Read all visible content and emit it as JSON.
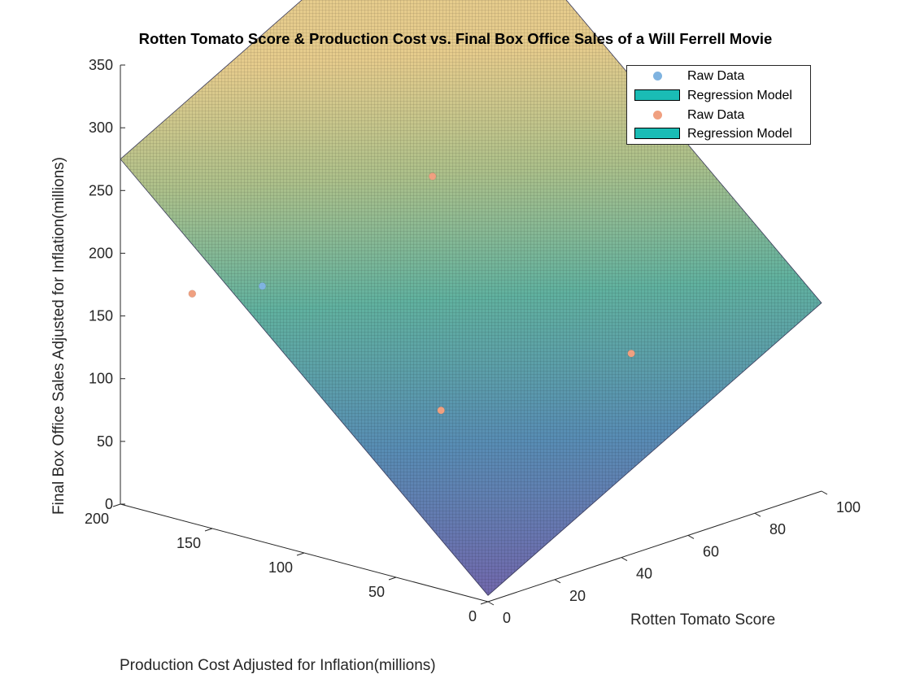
{
  "chart_data": {
    "type": "surface+scatter3d",
    "title": "Rotten Tomato Score & Production Cost vs. Final Box Office Sales of a Will Ferrell Movie",
    "xlabel": "Rotten Tomato Score",
    "ylabel": "Production Cost Adjusted for Inflation(millions)",
    "zlabel": "Final Box Office Sales Adjusted for Inflation(millions)",
    "xlim": [
      0,
      100
    ],
    "ylim": [
      0,
      200
    ],
    "zlim": [
      0,
      350
    ],
    "xticks": [
      0,
      20,
      40,
      60,
      80,
      100
    ],
    "yticks": [
      0,
      50,
      100,
      150,
      200
    ],
    "zticks": [
      0,
      50,
      100,
      150,
      200,
      250,
      300,
      350
    ],
    "grid": true,
    "colormap": "parula",
    "surface": {
      "z_at_corners": {
        "x0_y0": 5,
        "x100_y0": 150,
        "x0_y200": 275,
        "x100_y200": 420
      }
    },
    "series": [
      {
        "name": "Raw Data",
        "color": "#7fb3e0",
        "points": [
          {
            "x": 15,
            "y": 150,
            "z": 180
          }
        ]
      },
      {
        "name": "Raw Data",
        "color": "#f0a080",
        "points": [
          {
            "x": 5,
            "y": 170,
            "z": 175
          },
          {
            "x": 55,
            "y": 130,
            "z": 240
          },
          {
            "x": 30,
            "y": 80,
            "z": 95
          },
          {
            "x": 65,
            "y": 40,
            "z": 125
          }
        ]
      }
    ],
    "legend": {
      "position": "top-right",
      "entries": [
        {
          "label": "Raw Data",
          "kind": "marker",
          "color": "#7fb3e0"
        },
        {
          "label": "Regression Model",
          "kind": "patch",
          "color": "#1abcb5"
        },
        {
          "label": "Raw Data",
          "kind": "marker",
          "color": "#f0a080"
        },
        {
          "label": "Regression Model",
          "kind": "patch",
          "color": "#1abcb5"
        }
      ]
    }
  }
}
